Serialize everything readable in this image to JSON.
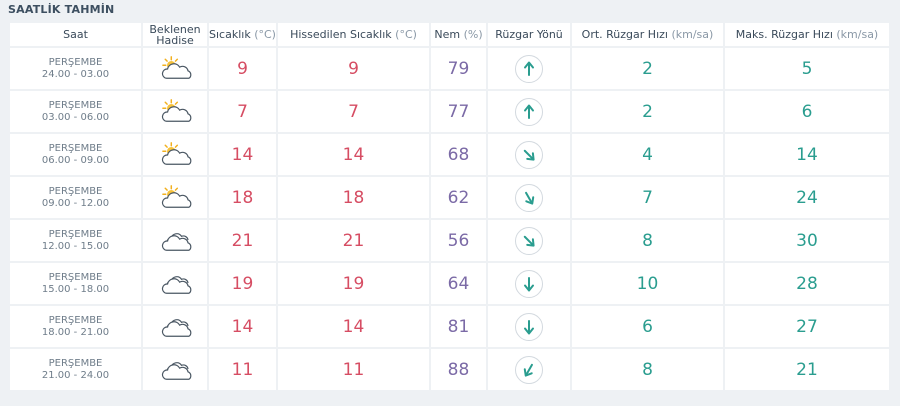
{
  "page_title": "SAATLİK TAHMİN",
  "headers": {
    "time": "Saat",
    "event_line1": "Beklenen",
    "event_line2": "Hadise",
    "temp": "Sıcaklık",
    "temp_unit": "(°C)",
    "feels": "Hissedilen Sıcaklık",
    "feels_unit": "(°C)",
    "humidity": "Nem",
    "humidity_unit": "(%)",
    "wind_dir": "Rüzgar Yönü",
    "avg_wind": "Ort. Rüzgar Hızı",
    "avg_wind_unit": "(km/sa)",
    "max_wind": "Maks. Rüzgar Hızı",
    "max_wind_unit": "(km/sa)"
  },
  "colors": {
    "temp": "#d64d63",
    "humidity": "#7b6aa6",
    "wind": "#2a9d8f"
  },
  "rows": [
    {
      "day": "PERŞEMBE",
      "range": "24.00 - 03.00",
      "icon": "partly-sunny-icon",
      "temp": "9",
      "feels": "9",
      "humidity": "79",
      "wind_dir_deg": 0,
      "avg_wind": "2",
      "max_wind": "5"
    },
    {
      "day": "PERŞEMBE",
      "range": "03.00 - 06.00",
      "icon": "partly-sunny-icon",
      "temp": "7",
      "feels": "7",
      "humidity": "77",
      "wind_dir_deg": 0,
      "avg_wind": "2",
      "max_wind": "6"
    },
    {
      "day": "PERŞEMBE",
      "range": "06.00 - 09.00",
      "icon": "partly-sunny-icon",
      "temp": "14",
      "feels": "14",
      "humidity": "68",
      "wind_dir_deg": 135,
      "avg_wind": "4",
      "max_wind": "14"
    },
    {
      "day": "PERŞEMBE",
      "range": "09.00 - 12.00",
      "icon": "partly-sunny-icon",
      "temp": "18",
      "feels": "18",
      "humidity": "62",
      "wind_dir_deg": 150,
      "avg_wind": "7",
      "max_wind": "24"
    },
    {
      "day": "PERŞEMBE",
      "range": "12.00 - 15.00",
      "icon": "cloudy-icon",
      "temp": "21",
      "feels": "21",
      "humidity": "56",
      "wind_dir_deg": 135,
      "avg_wind": "8",
      "max_wind": "30"
    },
    {
      "day": "PERŞEMBE",
      "range": "15.00 - 18.00",
      "icon": "cloudy-icon",
      "temp": "19",
      "feels": "19",
      "humidity": "64",
      "wind_dir_deg": 180,
      "avg_wind": "10",
      "max_wind": "28"
    },
    {
      "day": "PERŞEMBE",
      "range": "18.00 - 21.00",
      "icon": "cloudy-icon",
      "temp": "14",
      "feels": "14",
      "humidity": "81",
      "wind_dir_deg": 180,
      "avg_wind": "6",
      "max_wind": "27"
    },
    {
      "day": "PERŞEMBE",
      "range": "21.00 - 24.00",
      "icon": "cloudy-icon",
      "temp": "11",
      "feels": "11",
      "humidity": "88",
      "wind_dir_deg": 210,
      "avg_wind": "8",
      "max_wind": "21"
    }
  ]
}
